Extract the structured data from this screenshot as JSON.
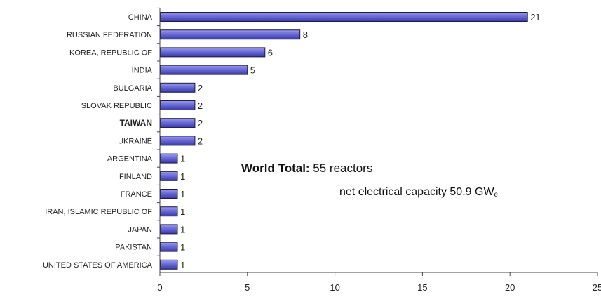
{
  "chart_data": {
    "type": "bar",
    "orientation": "horizontal",
    "categories": [
      "CHINA",
      "RUSSIAN FEDERATION",
      "KOREA, REPUBLIC OF",
      "INDIA",
      "BULGARIA",
      "SLOVAK REPUBLIC",
      "TAIWAN",
      "UKRAINE",
      "ARGENTINA",
      "FINLAND",
      "FRANCE",
      "IRAN, ISLAMIC REPUBLIC OF",
      "JAPAN",
      "PAKISTAN",
      "UNITED STATES OF AMERICA"
    ],
    "values": [
      21,
      8,
      6,
      5,
      2,
      2,
      2,
      2,
      1,
      1,
      1,
      1,
      1,
      1,
      1
    ],
    "data_labels": [
      "21",
      "8",
      "6",
      "5",
      "2",
      "2",
      "2",
      "2",
      "1",
      "1",
      "1",
      "1",
      "1",
      "1",
      "1"
    ],
    "bold_categories": [
      "TAIWAN"
    ],
    "xlim": [
      0,
      25
    ],
    "xticks": [
      0,
      5,
      10,
      15,
      20,
      25
    ],
    "xtick_labels": [
      "0",
      "5",
      "10",
      "15",
      "20",
      "25"
    ],
    "grid": false,
    "legend": "none",
    "bar_color": "#6b6bd6",
    "bar_edge_color": "#1c1c4a",
    "axis_color": "#444444"
  },
  "annotation": {
    "line1_bold": "World Total:",
    "line1_rest": " 55 reactors",
    "line2_main": "net electrical capacity 50.9 GW",
    "line2_sub": "e"
  }
}
